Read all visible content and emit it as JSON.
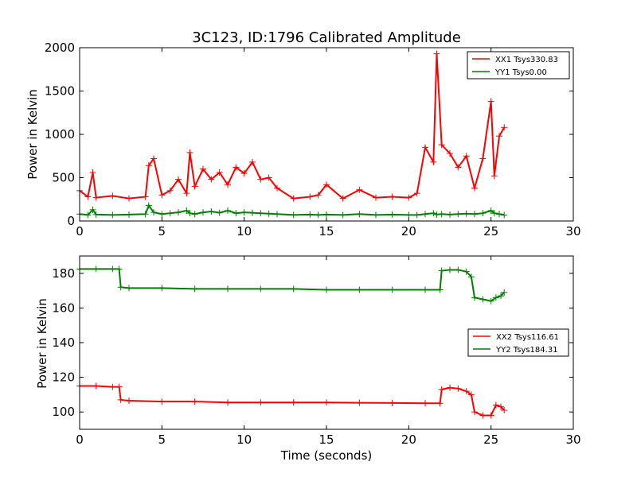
{
  "chart_data": [
    {
      "type": "line",
      "title": "3C123, ID:1796 Calibrated Amplitude",
      "xlabel": "",
      "ylabel": "Power in Kelvin",
      "xlim": [
        0,
        30
      ],
      "ylim": [
        0,
        2000
      ],
      "xticks": [
        "0",
        "5",
        "10",
        "15",
        "20",
        "25",
        "30"
      ],
      "yticks": [
        "0",
        "500",
        "1000",
        "1500",
        "2000"
      ],
      "grid": false,
      "legend_position": "top-right",
      "x": [
        0,
        0.5,
        0.8,
        1,
        2,
        3,
        4,
        4.2,
        4.5,
        5,
        5.5,
        6,
        6.5,
        6.7,
        7,
        7.5,
        8,
        8.5,
        9,
        9.5,
        10,
        10.5,
        11,
        11.5,
        12,
        13,
        14,
        14.5,
        15,
        16,
        17,
        18,
        19,
        20,
        20.5,
        21,
        21.5,
        21.7,
        22,
        22.5,
        23,
        23.5,
        24,
        24.5,
        25,
        25.2,
        25.5,
        25.8
      ],
      "series": [
        {
          "name": "XX1 Tsys330.83",
          "color": "#ff0000",
          "values": [
            350,
            280,
            560,
            270,
            290,
            260,
            280,
            640,
            720,
            300,
            350,
            480,
            320,
            790,
            400,
            600,
            480,
            560,
            420,
            620,
            550,
            680,
            480,
            500,
            380,
            260,
            280,
            300,
            420,
            260,
            360,
            270,
            280,
            270,
            320,
            850,
            680,
            1930,
            880,
            780,
            620,
            750,
            380,
            720,
            1380,
            520,
            980,
            1080
          ]
        },
        {
          "name": "YY1 Tsys0.00",
          "color": "#008000",
          "values": [
            80,
            70,
            130,
            75,
            70,
            75,
            80,
            180,
            100,
            80,
            90,
            100,
            120,
            90,
            80,
            100,
            110,
            95,
            120,
            90,
            100,
            95,
            90,
            85,
            80,
            70,
            75,
            70,
            75,
            70,
            80,
            70,
            75,
            70,
            70,
            80,
            90,
            75,
            80,
            75,
            80,
            85,
            80,
            90,
            120,
            90,
            80,
            70
          ]
        }
      ]
    },
    {
      "type": "line",
      "title": "",
      "xlabel": "Time (seconds)",
      "ylabel": "Power in Kelvin",
      "xlim": [
        0,
        30
      ],
      "ylim": [
        90,
        190
      ],
      "xticks": [
        "0",
        "5",
        "10",
        "15",
        "20",
        "25",
        "30"
      ],
      "yticks": [
        "100",
        "120",
        "140",
        "160",
        "180"
      ],
      "grid": false,
      "legend_position": "center-right",
      "x": [
        0,
        1,
        2,
        2.4,
        2.5,
        3,
        5,
        7,
        9,
        11,
        13,
        15,
        17,
        19,
        21,
        21.9,
        22,
        22.5,
        23,
        23.5,
        23.8,
        24,
        24.5,
        25,
        25.3,
        25.6,
        25.8
      ],
      "series": [
        {
          "name": "XX2 Tsys116.61",
          "color": "#ff0000",
          "values": [
            115,
            115,
            114.5,
            114.5,
            107,
            106.5,
            106,
            106,
            105.5,
            105.5,
            105.5,
            105.5,
            105.3,
            105.2,
            105,
            105,
            113,
            114,
            113.5,
            112,
            110,
            100,
            98,
            98,
            104,
            103,
            101
          ]
        },
        {
          "name": "YY2 Tsys184.31",
          "color": "#008000",
          "values": [
            182.5,
            182.5,
            182.5,
            182.5,
            172,
            171.5,
            171.5,
            171,
            171,
            171,
            171,
            170.5,
            170.5,
            170.5,
            170.5,
            170.5,
            181.5,
            182,
            182,
            181,
            178,
            166,
            165,
            164,
            166,
            167,
            169
          ]
        }
      ]
    }
  ]
}
